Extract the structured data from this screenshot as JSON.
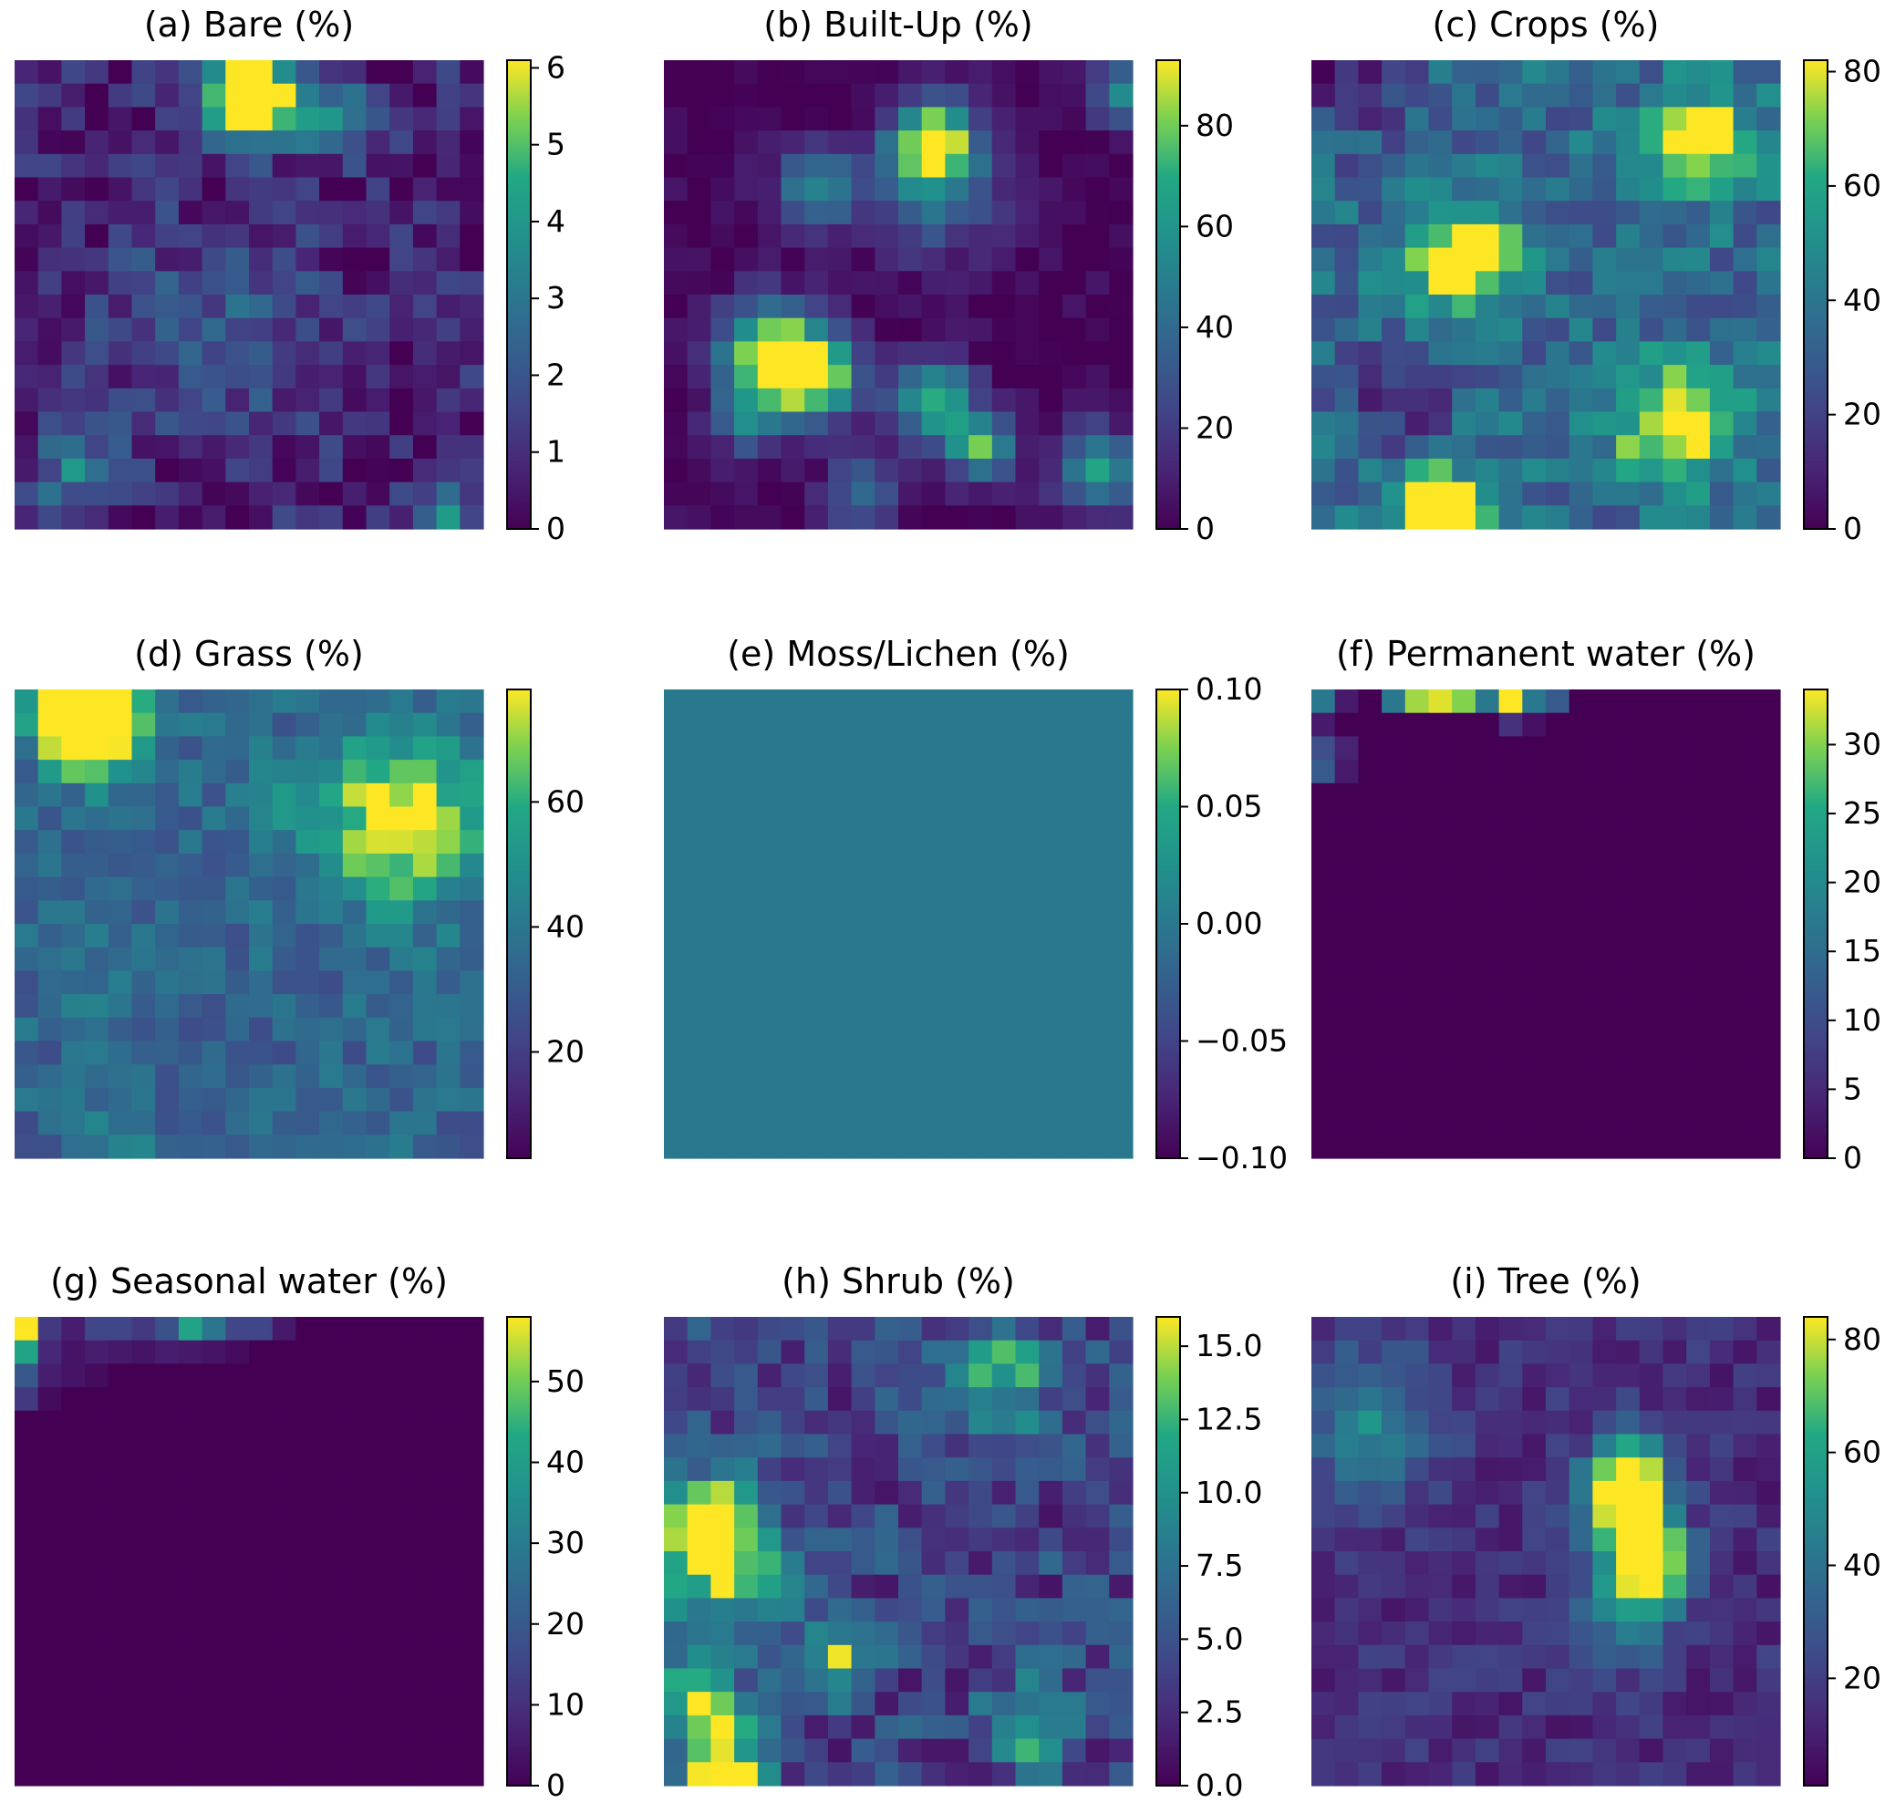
{
  "figure": {
    "colormap": "viridis",
    "rows": 20,
    "cols": 20
  },
  "chart_data": [
    {
      "type": "heatmap",
      "title": "(a) Bare (%)",
      "vmin": 0,
      "vmax": 6.1,
      "colorbar_ticks": [
        {
          "v": 0,
          "label": "0"
        },
        {
          "v": 1,
          "label": "1"
        },
        {
          "v": 2,
          "label": "2"
        },
        {
          "v": 3,
          "label": "3"
        },
        {
          "v": 4,
          "label": "4"
        },
        {
          "v": 5,
          "label": "5"
        },
        {
          "v": 6,
          "label": "6"
        }
      ],
      "seed": 1,
      "base": 0.7,
      "noise": 1.0,
      "hotspots": [
        [
          1,
          10,
          6.0,
          1.2
        ],
        [
          1,
          9,
          5.0,
          1.0
        ],
        [
          2,
          13,
          2.5,
          1.2
        ],
        [
          11,
          8,
          1.5,
          3.0
        ],
        [
          19,
          18,
          3.0,
          1.0
        ],
        [
          17,
          2,
          2.5,
          1.2
        ]
      ]
    },
    {
      "type": "heatmap",
      "title": "(b) Built-Up (%)",
      "vmin": 0,
      "vmax": 93,
      "colorbar_ticks": [
        {
          "v": 0,
          "label": "0"
        },
        {
          "v": 20,
          "label": "20"
        },
        {
          "v": 40,
          "label": "40"
        },
        {
          "v": 60,
          "label": "60"
        },
        {
          "v": 80,
          "label": "80"
        }
      ],
      "seed": 2,
      "base": 1,
      "noise": 6,
      "hotspots": [
        [
          3,
          11,
          90,
          1.2
        ],
        [
          5,
          6,
          55,
          1.2
        ],
        [
          12,
          4,
          92,
          1.5
        ],
        [
          13,
          6,
          85,
          1.3
        ],
        [
          14,
          11,
          70,
          1.2
        ],
        [
          16,
          13,
          70,
          1.0
        ],
        [
          17,
          18,
          65,
          1.2
        ],
        [
          5,
          11,
          40,
          2.0
        ],
        [
          1,
          19,
          50,
          1.0
        ],
        [
          15,
          3,
          40,
          1.0
        ],
        [
          18,
          8,
          35,
          1.2
        ]
      ]
    },
    {
      "type": "heatmap",
      "title": "(c) Crops (%)",
      "vmin": 0,
      "vmax": 82,
      "colorbar_ticks": [
        {
          "v": 0,
          "label": "0"
        },
        {
          "v": 20,
          "label": "20"
        },
        {
          "v": 40,
          "label": "40"
        },
        {
          "v": 60,
          "label": "60"
        },
        {
          "v": 80,
          "label": "80"
        }
      ],
      "seed": 3,
      "base": 35,
      "noise": 14,
      "hotspots": [
        [
          19,
          5,
          82,
          1.3
        ],
        [
          8,
          6,
          70,
          1.5
        ],
        [
          3,
          16,
          58,
          1.5
        ],
        [
          15,
          15,
          55,
          1.8
        ],
        [
          0,
          1,
          -30,
          2.0
        ],
        [
          14,
          3,
          -25,
          1.5
        ]
      ]
    },
    {
      "type": "heatmap",
      "title": "(d) Grass (%)",
      "vmin": 3,
      "vmax": 78,
      "colorbar_ticks": [
        {
          "v": 20,
          "label": "20"
        },
        {
          "v": 40,
          "label": "40"
        },
        {
          "v": 60,
          "label": "60"
        }
      ],
      "seed": 4,
      "base": 33,
      "noise": 9,
      "hotspots": [
        [
          0,
          2,
          78,
          1.2
        ],
        [
          1,
          3,
          72,
          1.5
        ],
        [
          5,
          16,
          48,
          2.5
        ],
        [
          12,
          3,
          5,
          1.3
        ],
        [
          4,
          11,
          8,
          1.3
        ],
        [
          19,
          4,
          8,
          1.2
        ]
      ]
    },
    {
      "type": "heatmap",
      "title": "(e) Moss/Lichen (%)",
      "vmin": -0.1,
      "vmax": 0.1,
      "colorbar_ticks": [
        {
          "v": 0.1,
          "label": "0.10"
        },
        {
          "v": 0.05,
          "label": "0.05"
        },
        {
          "v": 0,
          "label": "0.00"
        },
        {
          "v": -0.05,
          "label": "−0.05"
        },
        {
          "v": -0.1,
          "label": "−0.10"
        }
      ],
      "seed": 5,
      "base": 0,
      "noise": 0,
      "hotspots": []
    },
    {
      "type": "heatmap",
      "title": "(f) Permanent water (%)",
      "vmin": 0,
      "vmax": 34,
      "colorbar_ticks": [
        {
          "v": 0,
          "label": "0"
        },
        {
          "v": 5,
          "label": "5"
        },
        {
          "v": 10,
          "label": "10"
        },
        {
          "v": 15,
          "label": "15"
        },
        {
          "v": 20,
          "label": "20"
        },
        {
          "v": 25,
          "label": "25"
        },
        {
          "v": 30,
          "label": "30"
        }
      ],
      "seed": 6,
      "base": 0,
      "noise": 0,
      "cells": [
        [
          0,
          0,
          17
        ],
        [
          0,
          1,
          3
        ],
        [
          0,
          3,
          17
        ],
        [
          0,
          4,
          31
        ],
        [
          0,
          5,
          33
        ],
        [
          0,
          6,
          30
        ],
        [
          0,
          7,
          17
        ],
        [
          0,
          8,
          34
        ],
        [
          0,
          9,
          17
        ],
        [
          0,
          10,
          12
        ],
        [
          1,
          0,
          3
        ],
        [
          1,
          8,
          6
        ],
        [
          1,
          9,
          2
        ],
        [
          2,
          0,
          10
        ],
        [
          2,
          1,
          4
        ],
        [
          3,
          0,
          12
        ],
        [
          3,
          1,
          3
        ]
      ]
    },
    {
      "type": "heatmap",
      "title": "(g) Seasonal water (%)",
      "vmin": 0,
      "vmax": 58,
      "colorbar_ticks": [
        {
          "v": 0,
          "label": "0"
        },
        {
          "v": 10,
          "label": "10"
        },
        {
          "v": 20,
          "label": "20"
        },
        {
          "v": 30,
          "label": "30"
        },
        {
          "v": 40,
          "label": "40"
        },
        {
          "v": 50,
          "label": "50"
        }
      ],
      "seed": 7,
      "base": 0,
      "noise": 0,
      "cells": [
        [
          0,
          0,
          58
        ],
        [
          0,
          1,
          12
        ],
        [
          0,
          2,
          6
        ],
        [
          0,
          3,
          15
        ],
        [
          0,
          4,
          15
        ],
        [
          0,
          5,
          12
        ],
        [
          0,
          6,
          18
        ],
        [
          0,
          7,
          42
        ],
        [
          0,
          8,
          28
        ],
        [
          0,
          9,
          15
        ],
        [
          0,
          10,
          15
        ],
        [
          0,
          11,
          5
        ],
        [
          1,
          0,
          42
        ],
        [
          1,
          1,
          8
        ],
        [
          1,
          2,
          4
        ],
        [
          1,
          3,
          6
        ],
        [
          1,
          4,
          5
        ],
        [
          1,
          5,
          4
        ],
        [
          1,
          6,
          6
        ],
        [
          1,
          7,
          5
        ],
        [
          1,
          8,
          4
        ],
        [
          1,
          9,
          2
        ],
        [
          2,
          0,
          20
        ],
        [
          2,
          1,
          6
        ],
        [
          2,
          2,
          4
        ],
        [
          2,
          3,
          2
        ],
        [
          3,
          0,
          12
        ],
        [
          3,
          1,
          2
        ]
      ]
    },
    {
      "type": "heatmap",
      "title": "(h) Shrub (%)",
      "vmin": 0,
      "vmax": 16,
      "colorbar_ticks": [
        {
          "v": 0,
          "label": "0.0"
        },
        {
          "v": 2.5,
          "label": "2.5"
        },
        {
          "v": 5,
          "label": "5.0"
        },
        {
          "v": 7.5,
          "label": "7.5"
        },
        {
          "v": 10,
          "label": "10.0"
        },
        {
          "v": 12.5,
          "label": "12.5"
        },
        {
          "v": 15,
          "label": "15.0"
        }
      ],
      "seed": 8,
      "base": 4,
      "noise": 3,
      "hotspots": [
        [
          19,
          2,
          16,
          1.2
        ],
        [
          16,
          1,
          12,
          1.3
        ],
        [
          8,
          1,
          13,
          1.2
        ],
        [
          10,
          2,
          11,
          1.8
        ],
        [
          14,
          7,
          10,
          1.0
        ],
        [
          2,
          14,
          8,
          1.5
        ],
        [
          17,
          15,
          8,
          1.2
        ]
      ]
    },
    {
      "type": "heatmap",
      "title": "(i) Tree (%)",
      "vmin": 1,
      "vmax": 84,
      "colorbar_ticks": [
        {
          "v": 20,
          "label": "20"
        },
        {
          "v": 40,
          "label": "40"
        },
        {
          "v": 60,
          "label": "60"
        },
        {
          "v": 80,
          "label": "80"
        }
      ],
      "seed": 9,
      "base": 14,
      "noise": 8,
      "hotspots": [
        [
          8,
          13,
          80,
          1.3
        ],
        [
          10,
          14,
          84,
          1.0
        ],
        [
          6,
          13,
          55,
          1.2
        ],
        [
          4,
          2,
          35,
          2.0
        ],
        [
          12,
          13,
          40,
          1.5
        ]
      ]
    }
  ]
}
